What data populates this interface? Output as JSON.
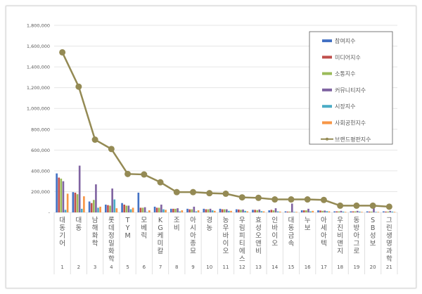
{
  "chart_data": {
    "type": "bar",
    "title": "",
    "xlabel": "",
    "ylabel": "",
    "ylim": [
      0,
      1800000
    ],
    "yticks": [
      0,
      200000,
      400000,
      600000,
      800000,
      1000000,
      1200000,
      1400000,
      1600000,
      1800000
    ],
    "ytick_labels": [
      "-",
      "200,000",
      "400,000",
      "600,000",
      "800,000",
      "1,000,000",
      "1,200,000",
      "1,400,000",
      "1,600,000",
      "1,800,000"
    ],
    "grid": true,
    "legend_position": "top-right",
    "categories": [
      "대동기어",
      "대동",
      "남해화학",
      "롯데정밀화학",
      "TYM",
      "모베릭",
      "KG케미칼",
      "조비",
      "아시아종묘",
      "경농",
      "농우바이오",
      "우림피티에스",
      "효성오앤비",
      "인바이오",
      "대동금속",
      "누보",
      "아세아텍",
      "우진비앤지",
      "동방아그로",
      "SB성보",
      "그린생명과학"
    ],
    "ranks": [
      "1",
      "2",
      "3",
      "4",
      "5",
      "6",
      "7",
      "8",
      "9",
      "10",
      "11",
      "12",
      "13",
      "14",
      "15",
      "16",
      "17",
      "18",
      "19",
      "20",
      "21"
    ],
    "series": [
      {
        "name": "참여지수",
        "kind": "bar",
        "color": "#4472c4",
        "values": [
          375000,
          195000,
          105000,
          75000,
          90000,
          190000,
          55000,
          35000,
          35000,
          35000,
          35000,
          30000,
          25000,
          20000,
          10000,
          20000,
          20000,
          10000,
          10000,
          10000,
          10000
        ]
      },
      {
        "name": "미디어지수",
        "kind": "bar",
        "color": "#c0504d",
        "values": [
          335000,
          190000,
          90000,
          70000,
          75000,
          45000,
          45000,
          35000,
          30000,
          30000,
          30000,
          28000,
          25000,
          25000,
          8000,
          20000,
          18000,
          10000,
          10000,
          8000,
          8000
        ]
      },
      {
        "name": "소통지수",
        "kind": "bar",
        "color": "#9bbb59",
        "values": [
          325000,
          175000,
          120000,
          65000,
          65000,
          45000,
          45000,
          35000,
          30000,
          30000,
          30000,
          25000,
          22000,
          20000,
          8000,
          20000,
          15000,
          10000,
          10000,
          8000,
          8000
        ]
      },
      {
        "name": "커뮤니티지수",
        "kind": "bar",
        "color": "#8064a2",
        "values": [
          300000,
          450000,
          270000,
          230000,
          65000,
          50000,
          75000,
          40000,
          55000,
          35000,
          30000,
          28000,
          28000,
          40000,
          85000,
          35000,
          18000,
          15000,
          15000,
          40000,
          15000
        ]
      },
      {
        "name": "시장지수",
        "kind": "bar",
        "color": "#4bacc6",
        "values": [
          25000,
          35000,
          45000,
          125000,
          30000,
          5000,
          30000,
          10000,
          10000,
          20000,
          15000,
          15000,
          12000,
          10000,
          5000,
          10000,
          12000,
          8000,
          8000,
          5000,
          8000
        ]
      },
      {
        "name": "사회공헌지수",
        "kind": "bar",
        "color": "#f79646",
        "values": [
          180000,
          155000,
          55000,
          40000,
          45000,
          20000,
          25000,
          20000,
          20000,
          15000,
          15000,
          10000,
          10000,
          8000,
          5000,
          15000,
          10000,
          5000,
          5000,
          5000,
          5000
        ]
      },
      {
        "name": "브랜드평판지수",
        "kind": "line",
        "color": "#948a54",
        "values": [
          1540000,
          1210000,
          700000,
          610000,
          370000,
          365000,
          290000,
          195000,
          195000,
          185000,
          180000,
          145000,
          140000,
          125000,
          125000,
          125000,
          120000,
          65000,
          65000,
          65000,
          55000
        ]
      }
    ]
  }
}
